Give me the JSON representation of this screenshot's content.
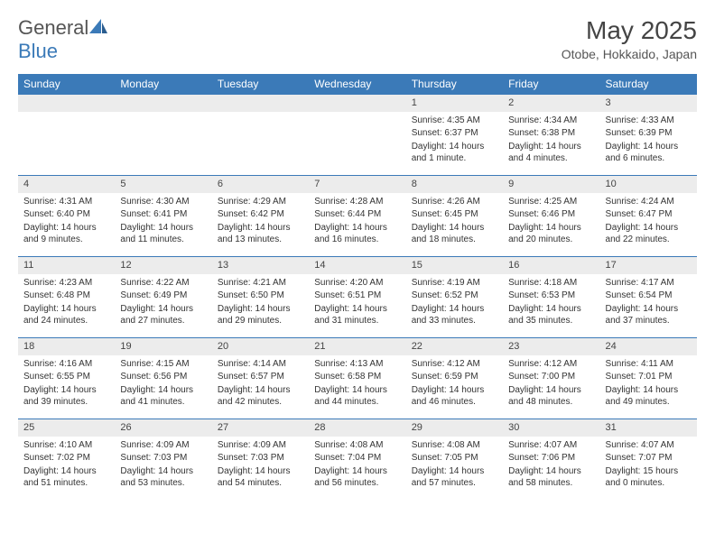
{
  "logo": {
    "word1": "General",
    "word2": "Blue"
  },
  "title": "May 2025",
  "location": "Otobe, Hokkaido, Japan",
  "colors": {
    "header_bg": "#3b7ab8",
    "header_fg": "#ffffff",
    "daynum_bg": "#ececec",
    "border": "#3b7ab8",
    "text": "#333333",
    "logo_gray": "#555555",
    "logo_blue": "#3b7ab8",
    "background": "#ffffff"
  },
  "typography": {
    "title_fontsize": 28,
    "location_fontsize": 14,
    "header_fontsize": 12,
    "daynum_fontsize": 11,
    "cell_fontsize": 10
  },
  "day_headers": [
    "Sunday",
    "Monday",
    "Tuesday",
    "Wednesday",
    "Thursday",
    "Friday",
    "Saturday"
  ],
  "weeks": [
    [
      null,
      null,
      null,
      null,
      {
        "n": "1",
        "sunrise": "Sunrise: 4:35 AM",
        "sunset": "Sunset: 6:37 PM",
        "daylight": "Daylight: 14 hours and 1 minute."
      },
      {
        "n": "2",
        "sunrise": "Sunrise: 4:34 AM",
        "sunset": "Sunset: 6:38 PM",
        "daylight": "Daylight: 14 hours and 4 minutes."
      },
      {
        "n": "3",
        "sunrise": "Sunrise: 4:33 AM",
        "sunset": "Sunset: 6:39 PM",
        "daylight": "Daylight: 14 hours and 6 minutes."
      }
    ],
    [
      {
        "n": "4",
        "sunrise": "Sunrise: 4:31 AM",
        "sunset": "Sunset: 6:40 PM",
        "daylight": "Daylight: 14 hours and 9 minutes."
      },
      {
        "n": "5",
        "sunrise": "Sunrise: 4:30 AM",
        "sunset": "Sunset: 6:41 PM",
        "daylight": "Daylight: 14 hours and 11 minutes."
      },
      {
        "n": "6",
        "sunrise": "Sunrise: 4:29 AM",
        "sunset": "Sunset: 6:42 PM",
        "daylight": "Daylight: 14 hours and 13 minutes."
      },
      {
        "n": "7",
        "sunrise": "Sunrise: 4:28 AM",
        "sunset": "Sunset: 6:44 PM",
        "daylight": "Daylight: 14 hours and 16 minutes."
      },
      {
        "n": "8",
        "sunrise": "Sunrise: 4:26 AM",
        "sunset": "Sunset: 6:45 PM",
        "daylight": "Daylight: 14 hours and 18 minutes."
      },
      {
        "n": "9",
        "sunrise": "Sunrise: 4:25 AM",
        "sunset": "Sunset: 6:46 PM",
        "daylight": "Daylight: 14 hours and 20 minutes."
      },
      {
        "n": "10",
        "sunrise": "Sunrise: 4:24 AM",
        "sunset": "Sunset: 6:47 PM",
        "daylight": "Daylight: 14 hours and 22 minutes."
      }
    ],
    [
      {
        "n": "11",
        "sunrise": "Sunrise: 4:23 AM",
        "sunset": "Sunset: 6:48 PM",
        "daylight": "Daylight: 14 hours and 24 minutes."
      },
      {
        "n": "12",
        "sunrise": "Sunrise: 4:22 AM",
        "sunset": "Sunset: 6:49 PM",
        "daylight": "Daylight: 14 hours and 27 minutes."
      },
      {
        "n": "13",
        "sunrise": "Sunrise: 4:21 AM",
        "sunset": "Sunset: 6:50 PM",
        "daylight": "Daylight: 14 hours and 29 minutes."
      },
      {
        "n": "14",
        "sunrise": "Sunrise: 4:20 AM",
        "sunset": "Sunset: 6:51 PM",
        "daylight": "Daylight: 14 hours and 31 minutes."
      },
      {
        "n": "15",
        "sunrise": "Sunrise: 4:19 AM",
        "sunset": "Sunset: 6:52 PM",
        "daylight": "Daylight: 14 hours and 33 minutes."
      },
      {
        "n": "16",
        "sunrise": "Sunrise: 4:18 AM",
        "sunset": "Sunset: 6:53 PM",
        "daylight": "Daylight: 14 hours and 35 minutes."
      },
      {
        "n": "17",
        "sunrise": "Sunrise: 4:17 AM",
        "sunset": "Sunset: 6:54 PM",
        "daylight": "Daylight: 14 hours and 37 minutes."
      }
    ],
    [
      {
        "n": "18",
        "sunrise": "Sunrise: 4:16 AM",
        "sunset": "Sunset: 6:55 PM",
        "daylight": "Daylight: 14 hours and 39 minutes."
      },
      {
        "n": "19",
        "sunrise": "Sunrise: 4:15 AM",
        "sunset": "Sunset: 6:56 PM",
        "daylight": "Daylight: 14 hours and 41 minutes."
      },
      {
        "n": "20",
        "sunrise": "Sunrise: 4:14 AM",
        "sunset": "Sunset: 6:57 PM",
        "daylight": "Daylight: 14 hours and 42 minutes."
      },
      {
        "n": "21",
        "sunrise": "Sunrise: 4:13 AM",
        "sunset": "Sunset: 6:58 PM",
        "daylight": "Daylight: 14 hours and 44 minutes."
      },
      {
        "n": "22",
        "sunrise": "Sunrise: 4:12 AM",
        "sunset": "Sunset: 6:59 PM",
        "daylight": "Daylight: 14 hours and 46 minutes."
      },
      {
        "n": "23",
        "sunrise": "Sunrise: 4:12 AM",
        "sunset": "Sunset: 7:00 PM",
        "daylight": "Daylight: 14 hours and 48 minutes."
      },
      {
        "n": "24",
        "sunrise": "Sunrise: 4:11 AM",
        "sunset": "Sunset: 7:01 PM",
        "daylight": "Daylight: 14 hours and 49 minutes."
      }
    ],
    [
      {
        "n": "25",
        "sunrise": "Sunrise: 4:10 AM",
        "sunset": "Sunset: 7:02 PM",
        "daylight": "Daylight: 14 hours and 51 minutes."
      },
      {
        "n": "26",
        "sunrise": "Sunrise: 4:09 AM",
        "sunset": "Sunset: 7:03 PM",
        "daylight": "Daylight: 14 hours and 53 minutes."
      },
      {
        "n": "27",
        "sunrise": "Sunrise: 4:09 AM",
        "sunset": "Sunset: 7:03 PM",
        "daylight": "Daylight: 14 hours and 54 minutes."
      },
      {
        "n": "28",
        "sunrise": "Sunrise: 4:08 AM",
        "sunset": "Sunset: 7:04 PM",
        "daylight": "Daylight: 14 hours and 56 minutes."
      },
      {
        "n": "29",
        "sunrise": "Sunrise: 4:08 AM",
        "sunset": "Sunset: 7:05 PM",
        "daylight": "Daylight: 14 hours and 57 minutes."
      },
      {
        "n": "30",
        "sunrise": "Sunrise: 4:07 AM",
        "sunset": "Sunset: 7:06 PM",
        "daylight": "Daylight: 14 hours and 58 minutes."
      },
      {
        "n": "31",
        "sunrise": "Sunrise: 4:07 AM",
        "sunset": "Sunset: 7:07 PM",
        "daylight": "Daylight: 15 hours and 0 minutes."
      }
    ]
  ]
}
